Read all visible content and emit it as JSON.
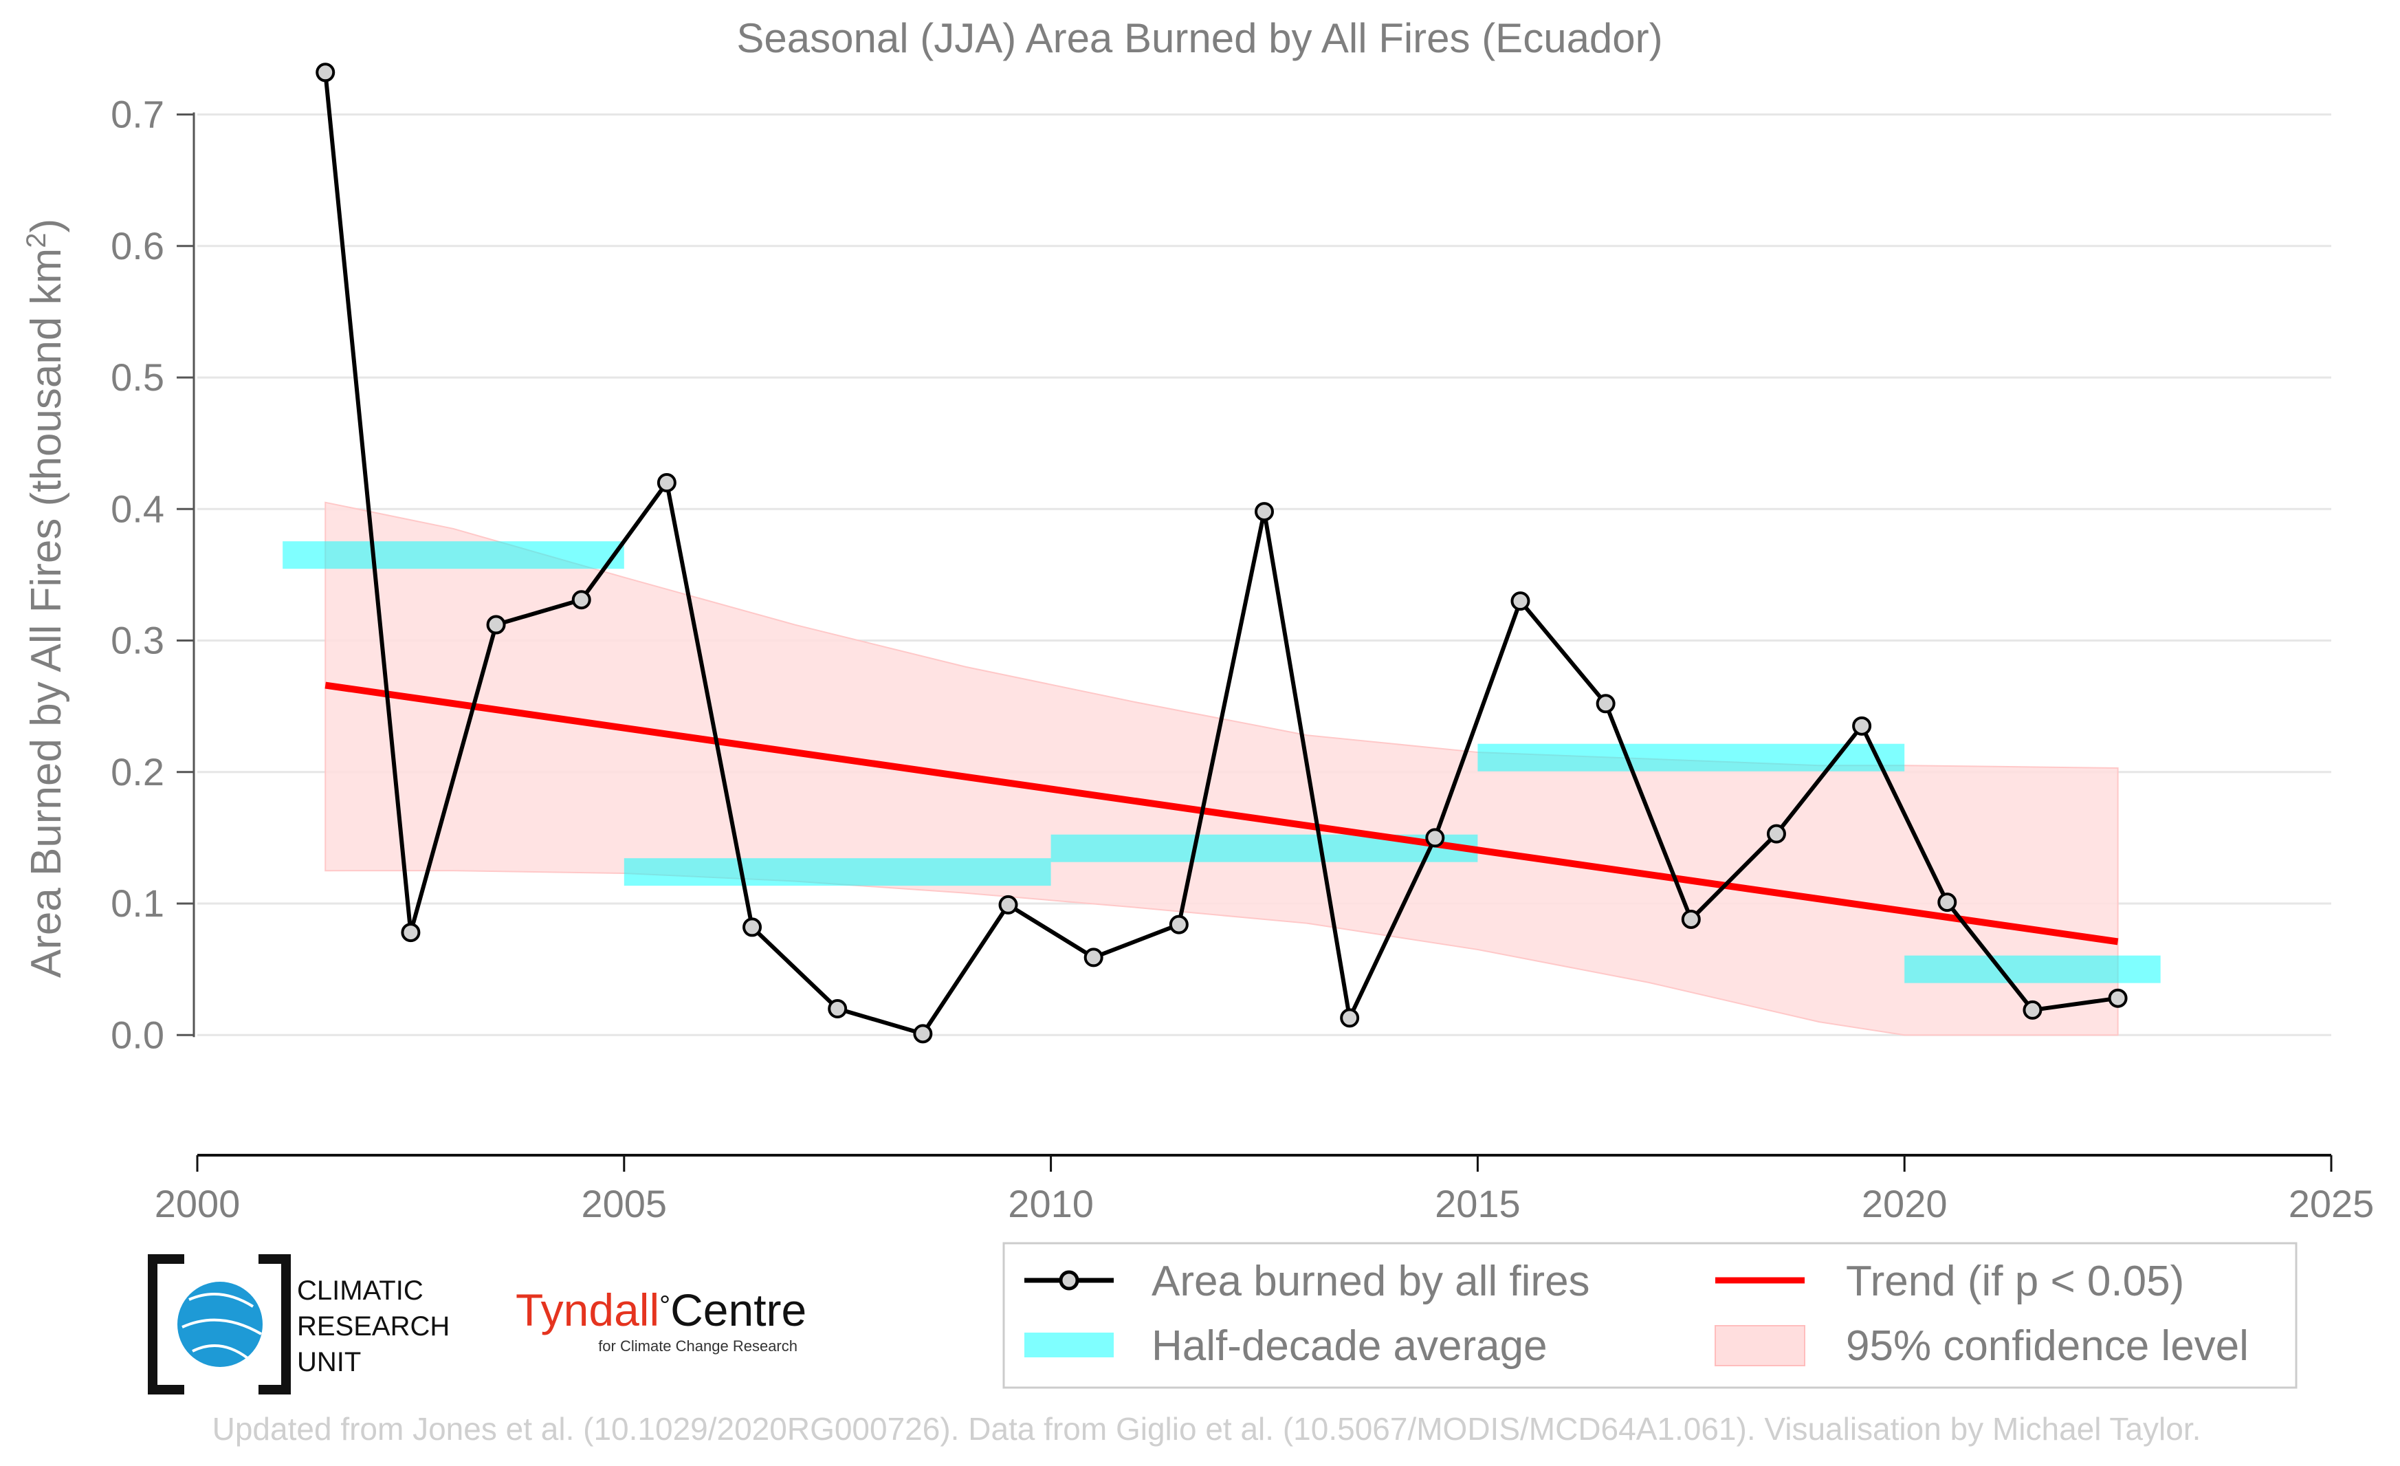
{
  "chart_data": {
    "type": "line",
    "title": "Seasonal (JJA) Area Burned by All Fires (Ecuador)",
    "ylabel_main": "Area Burned by All Fires (thousand km",
    "ylabel_sup": "2",
    "ylabel_end": ")",
    "xlim": [
      2000,
      2025
    ],
    "ylim": [
      -0.06,
      0.74
    ],
    "x_ticks": [
      2000,
      2005,
      2010,
      2015,
      2020,
      2025
    ],
    "y_ticks": [
      0.0,
      0.1,
      0.2,
      0.3,
      0.4,
      0.5,
      0.6,
      0.7
    ],
    "grid": true,
    "series": [
      {
        "name": "Area burned by all fires",
        "color": "#000000",
        "x": [
          2001.5,
          2002.5,
          2003.5,
          2004.5,
          2005.5,
          2006.5,
          2007.5,
          2008.5,
          2009.5,
          2010.5,
          2011.5,
          2012.5,
          2013.5,
          2014.5,
          2015.5,
          2016.5,
          2017.5,
          2018.5,
          2019.5,
          2020.5,
          2021.5,
          2022.5
        ],
        "y": [
          0.732,
          0.078,
          0.312,
          0.331,
          0.42,
          0.082,
          0.02,
          0.001,
          0.099,
          0.059,
          0.084,
          0.398,
          0.013,
          0.15,
          0.33,
          0.252,
          0.088,
          0.153,
          0.235,
          0.101,
          0.019,
          0.028
        ]
      }
    ],
    "half_decade_average": {
      "name": "Half-decade average",
      "color": "#00ffff",
      "segments": [
        {
          "x_start": 2001,
          "x_end": 2005,
          "value": 0.365
        },
        {
          "x_start": 2005,
          "x_end": 2010,
          "value": 0.124
        },
        {
          "x_start": 2010,
          "x_end": 2015,
          "value": 0.142
        },
        {
          "x_start": 2015,
          "x_end": 2020,
          "value": 0.211
        },
        {
          "x_start": 2020,
          "x_end": 2023,
          "value": 0.05
        }
      ]
    },
    "trend": {
      "name": "Trend (if p < 0.05)",
      "color": "#ff0000",
      "x": [
        2001.5,
        2022.5
      ],
      "y": [
        0.266,
        0.071
      ]
    },
    "confidence_band": {
      "name": "95% confidence level",
      "color": "#ffdede",
      "x": [
        2001.5,
        2003.0,
        2005.0,
        2007.0,
        2009.0,
        2011.0,
        2013.0,
        2015.0,
        2017.0,
        2019.0,
        2020.0,
        2022.5
      ],
      "upper": [
        0.405,
        0.385,
        0.348,
        0.312,
        0.28,
        0.253,
        0.228,
        0.215,
        0.21,
        0.205,
        0.205,
        0.203
      ],
      "lower": [
        0.125,
        0.125,
        0.123,
        0.117,
        0.108,
        0.097,
        0.085,
        0.065,
        0.04,
        0.01,
        0.0,
        0.0
      ]
    },
    "legend_placement": "bottom-right, below plot"
  },
  "logos": {
    "cru_line1": "CLIMATIC",
    "cru_line2": "RESEARCH",
    "cru_line3": "UNIT",
    "tyndall_red": "Tyndall",
    "tyndall_degree": "°",
    "tyndall_black": "Centre",
    "tyndall_sub": "for Climate Change Research"
  },
  "credit": "Updated from Jones et al. (10.1029/2020RG000726). Data from Giglio et al. (10.5067/MODIS/MCD64A1.061). Visualisation by Michael Taylor."
}
